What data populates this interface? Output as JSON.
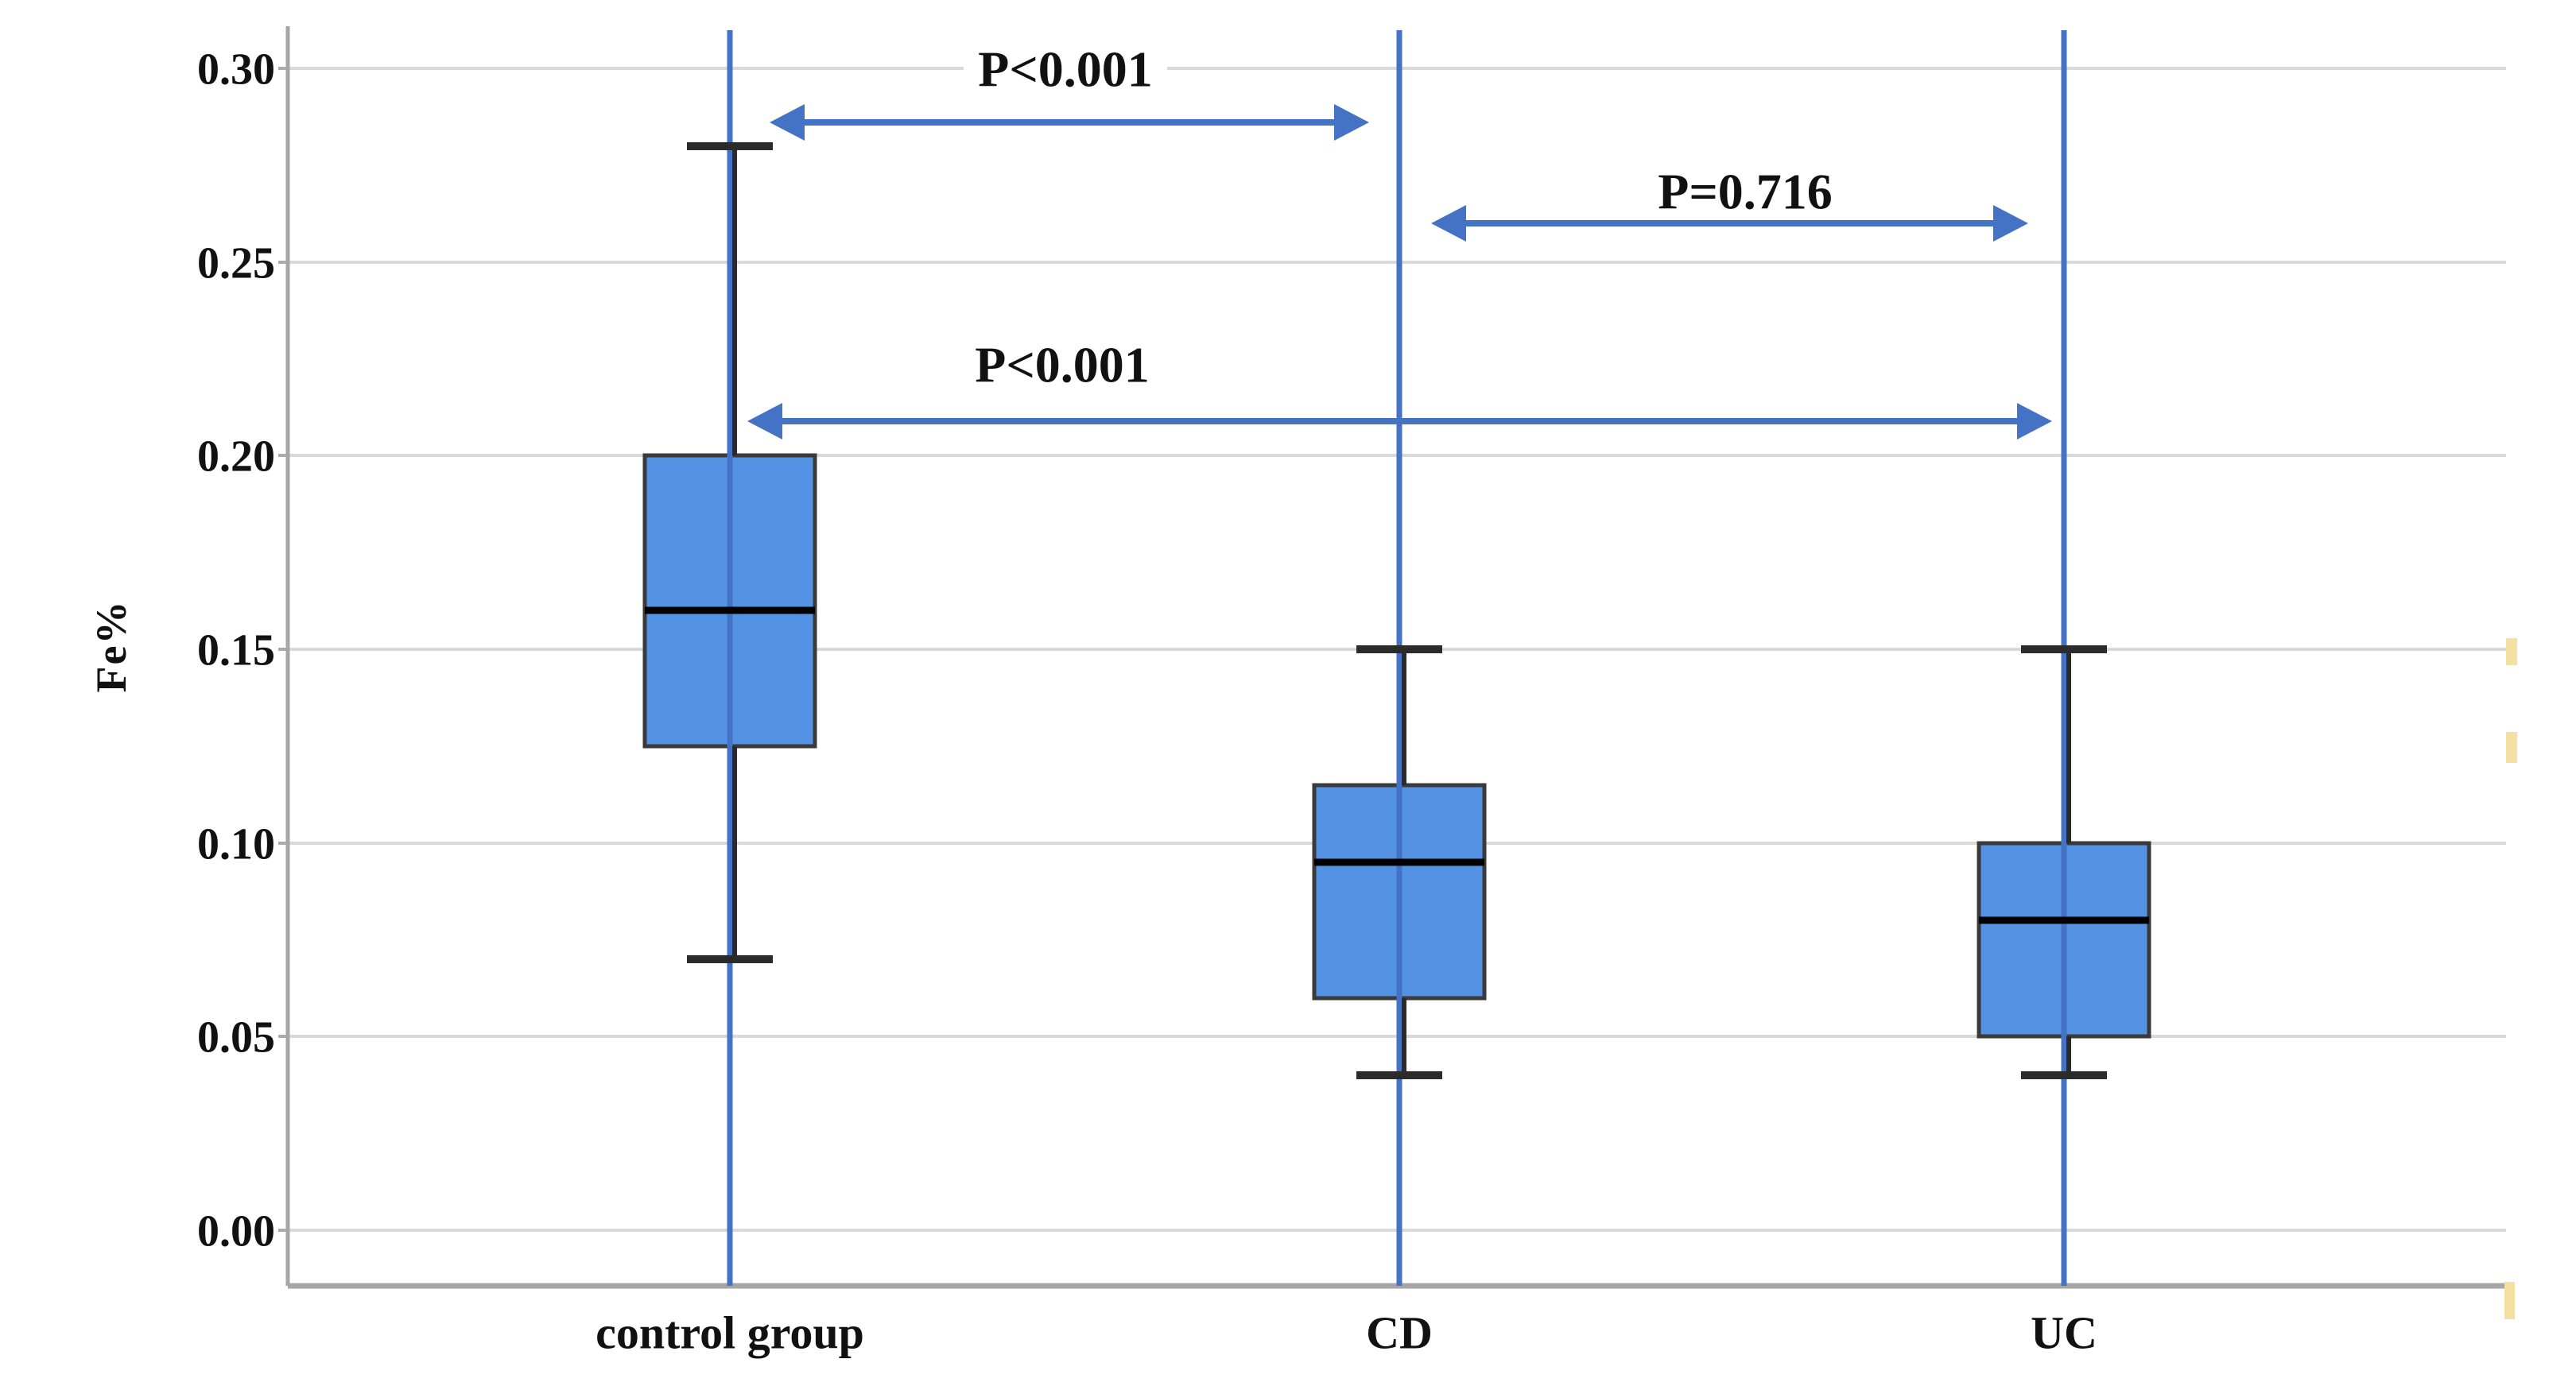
{
  "figure": {
    "background": "#ffffff"
  },
  "chart_data": {
    "type": "boxplot",
    "title": "",
    "xlabel": "",
    "ylabel": "Fe%",
    "grid": true,
    "legend": "none",
    "ylim": [
      0.0,
      0.3
    ],
    "categories": [
      "control group",
      "CD",
      "UC"
    ],
    "yaxis": {
      "tick_values": [
        0.3,
        0.25,
        0.2,
        0.15,
        0.1,
        0.05,
        0.0
      ],
      "tick_labels": [
        "0.30",
        "0.25",
        "0.20",
        "0.15",
        "0.10",
        "0.05",
        "0.00"
      ]
    },
    "boxes": [
      {
        "category": "control group",
        "whisker_low": 0.07,
        "q1": 0.125,
        "median": 0.16,
        "q3": 0.2,
        "whisker_high": 0.28
      },
      {
        "category": "CD",
        "whisker_low": 0.04,
        "q1": 0.06,
        "median": 0.095,
        "q3": 0.115,
        "whisker_high": 0.15
      },
      {
        "category": "UC",
        "whisker_low": 0.04,
        "q1": 0.05,
        "median": 0.08,
        "q3": 0.1,
        "whisker_high": 0.15
      }
    ],
    "annotations": [
      {
        "label": "P<0.001",
        "pair": [
          0,
          1
        ],
        "y": 0.286
      },
      {
        "label": "P=0.716",
        "pair": [
          1,
          2
        ],
        "y": 0.26
      },
      {
        "label": "P<0.001",
        "pair": [
          0,
          2
        ],
        "y": 0.209
      }
    ],
    "colors": {
      "box_fill": "#5493E4",
      "box_border": "#3A3A3A",
      "median": "#000000",
      "whisker": "#2B2B2B",
      "category_line": "#4472C4",
      "arrow": "#4472C4",
      "gridline": "#D9D9D9",
      "axis": "#A6A6A6",
      "tick": "#ABABAB",
      "text": "#111111",
      "artifact": "#F5E0A4"
    }
  }
}
